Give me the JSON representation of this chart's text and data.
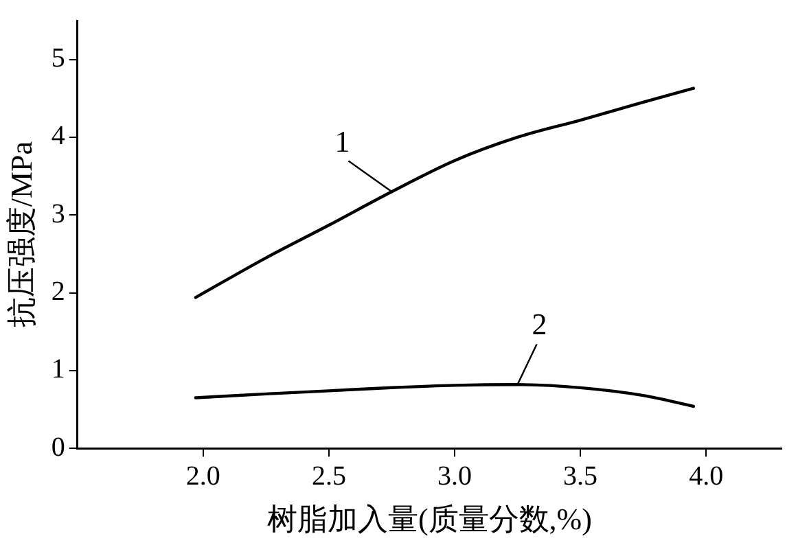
{
  "chart_data": {
    "type": "line",
    "xlabel": "树脂加入量(质量分数,%)",
    "ylabel": "抗压强度/MPa",
    "xlim": [
      1.5,
      4.3
    ],
    "xticks": [
      {
        "value": 2.0,
        "label": "2.0"
      },
      {
        "value": 2.5,
        "label": "2.5"
      },
      {
        "value": 3.0,
        "label": "3.0"
      },
      {
        "value": 3.5,
        "label": "3.5"
      },
      {
        "value": 4.0,
        "label": "4.0"
      }
    ],
    "ylim": [
      0,
      5.5
    ],
    "yticks": [
      0,
      1,
      2,
      3,
      4,
      5
    ],
    "grid": false,
    "legend": false,
    "marker": "none",
    "line_style": "solid",
    "series": [
      {
        "name": "1",
        "color": "#000000",
        "x": [
          1.97,
          2.25,
          2.5,
          2.75,
          3.0,
          3.25,
          3.5,
          3.75,
          3.95
        ],
        "values": [
          1.94,
          2.45,
          2.87,
          3.3,
          3.7,
          4.0,
          4.22,
          4.45,
          4.63
        ]
      },
      {
        "name": "2",
        "color": "#000000",
        "x": [
          1.97,
          2.25,
          2.5,
          2.75,
          3.0,
          3.25,
          3.5,
          3.75,
          3.95
        ],
        "values": [
          0.65,
          0.7,
          0.74,
          0.78,
          0.81,
          0.82,
          0.78,
          0.68,
          0.54
        ]
      }
    ]
  }
}
